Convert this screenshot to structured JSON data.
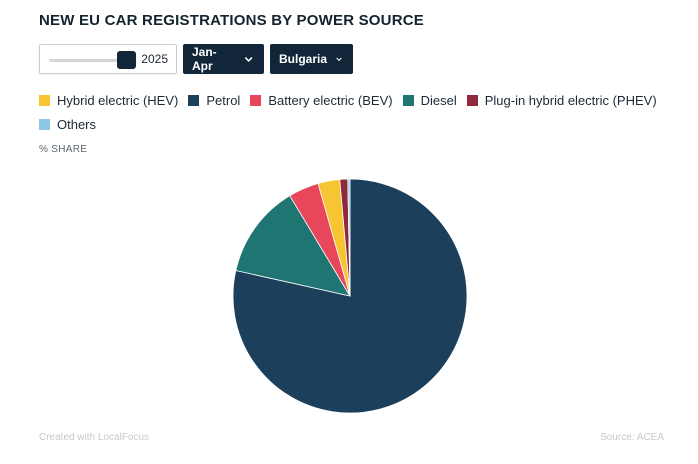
{
  "header": {
    "title": "NEW EU CAR REGISTRATIONS BY POWER SOURCE"
  },
  "controls": {
    "year_value": "2025",
    "period_label": "Jan-Apr",
    "country_label": "Bulgaria"
  },
  "unit_label": "% SHARE",
  "footer": {
    "credit": "Created with LocalFocus",
    "source": "Source: ACEA"
  },
  "chart_data": {
    "type": "pie",
    "title": "NEW EU CAR REGISTRATIONS BY POWER SOURCE",
    "unit": "% SHARE",
    "legend_position": "top",
    "series": [
      {
        "name": "Hybrid electric (HEV)",
        "value": 3.0,
        "color": "#f7c531"
      },
      {
        "name": "Petrol",
        "value": 78.5,
        "color": "#1c3f5c"
      },
      {
        "name": "Battery electric (BEV)",
        "value": 4.2,
        "color": "#e8475b"
      },
      {
        "name": "Diesel",
        "value": 12.9,
        "color": "#1f7572"
      },
      {
        "name": "Plug-in hybrid electric (PHEV)",
        "value": 1.1,
        "color": "#8e2a3c"
      },
      {
        "name": "Others",
        "value": 0.3,
        "color": "#90c6e6"
      }
    ],
    "draw_order": [
      "Petrol",
      "Diesel",
      "Battery electric (BEV)",
      "Hybrid electric (HEV)",
      "Plug-in hybrid electric (PHEV)",
      "Others"
    ]
  }
}
